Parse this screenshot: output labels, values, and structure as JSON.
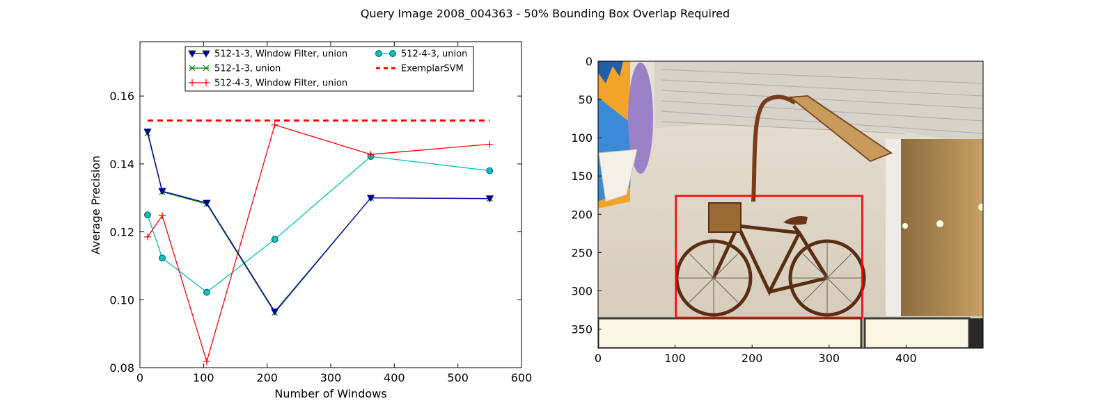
{
  "figure": {
    "title": "Query Image 2008_004363 - 50% Bounding Box Overlap Required",
    "background": "#ffffff"
  },
  "chart_data": [
    {
      "type": "line",
      "title": "",
      "xlabel": "Number of Windows",
      "ylabel": "Average Precision",
      "xlim": [
        0,
        600
      ],
      "ylim": [
        0.08,
        0.176
      ],
      "xticks": [
        0,
        100,
        200,
        300,
        400,
        500,
        600
      ],
      "yticks": [
        0.08,
        0.1,
        0.12,
        0.14,
        0.16
      ],
      "xtick_labels": [
        "0",
        "100",
        "200",
        "300",
        "400",
        "500",
        "600"
      ],
      "ytick_labels": [
        "0.08",
        "0.10",
        "0.12",
        "0.14",
        "0.16"
      ],
      "grid": false,
      "legend_position": "top-center",
      "series": [
        {
          "name": "512-1-3, Window Filter, union",
          "color": "#0000b0",
          "marker": "triangle-down",
          "x": [
            12,
            35,
            105,
            212,
            363,
            550
          ],
          "y": [
            0.1495,
            0.132,
            0.1285,
            0.0965,
            0.13,
            0.1298
          ]
        },
        {
          "name": "512-1-3, union",
          "color": "#007a00",
          "marker": "x",
          "x": [
            12,
            35,
            105,
            212,
            363,
            550
          ],
          "y": [
            0.149,
            0.1318,
            0.1282,
            0.0962,
            0.13,
            0.1298
          ]
        },
        {
          "name": "512-4-3, Window Filter, union",
          "color": "#ff0000",
          "marker": "plus",
          "x": [
            12,
            35,
            105,
            212,
            363,
            550
          ],
          "y": [
            0.1185,
            0.1248,
            0.0818,
            0.1515,
            0.1428,
            0.1458
          ]
        },
        {
          "name": "512-4-3, union",
          "color": "#00bfbf",
          "marker": "circle",
          "x": [
            12,
            35,
            105,
            212,
            363,
            550
          ],
          "y": [
            0.125,
            0.1123,
            0.1022,
            0.1178,
            0.1422,
            0.138
          ]
        },
        {
          "name": "ExemplarSVM",
          "color": "#ff0000",
          "marker": "none",
          "dashed": true,
          "x": [
            12,
            550
          ],
          "y": [
            0.1528,
            0.1528
          ]
        }
      ]
    },
    {
      "type": "image",
      "title": "",
      "xlabel": "",
      "ylabel": "",
      "xlim": [
        0,
        500
      ],
      "ylim": [
        375,
        0
      ],
      "xticks": [
        0,
        100,
        200,
        300,
        400
      ],
      "yticks": [
        0,
        50,
        100,
        150,
        200,
        250,
        300,
        350
      ],
      "xtick_labels": [
        "0",
        "100",
        "200",
        "300",
        "400"
      ],
      "ytick_labels": [
        "0",
        "50",
        "100",
        "150",
        "200",
        "250",
        "300",
        "350"
      ],
      "bounding_box": {
        "x0": 101,
        "y0": 176,
        "x1": 343,
        "y1": 335,
        "color": "#ff0000"
      },
      "image_content": "photo-bicycle"
    }
  ]
}
